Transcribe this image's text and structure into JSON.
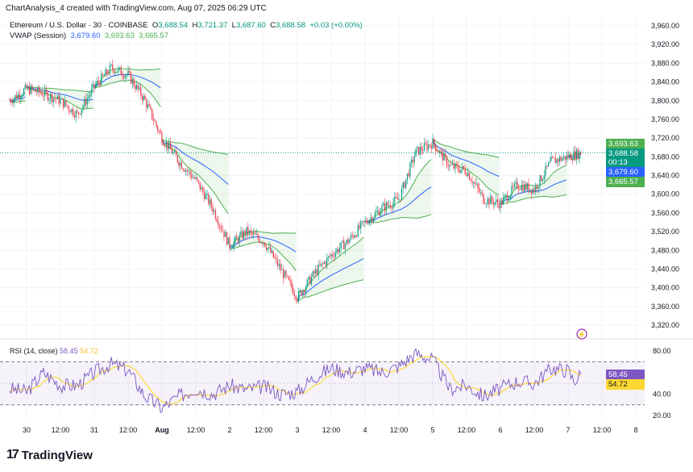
{
  "header": "ChartAnalysis_4 created with TradingView.com, Aug 07, 2025 06:29 UTC",
  "legend": {
    "symbol": "Ethereum / U.S. Dollar · 30 · COINBASE",
    "o_label": "O",
    "o": "3,688.54",
    "h_label": "H",
    "h": "3,721.37",
    "l_label": "L",
    "l": "3,687.60",
    "c_label": "C",
    "c": "3,688.58",
    "change": "+0.03 (+0.00%)",
    "vwap_label": "VWAP (Session)",
    "vwap": "3,679.60",
    "vwap_upper": "3,693.63",
    "vwap_lower": "3,665.57"
  },
  "price_tags": {
    "upper": "3,693.63",
    "last": "3,688.58",
    "countdown": "00:13",
    "vwap": "3,679.60",
    "lower": "3,665.57"
  },
  "rsi_legend": {
    "label": "RSI (14, close)",
    "rsi": "58.45",
    "ma": "54.72"
  },
  "rsi_tags": {
    "rsi": "58.45",
    "ma": "54.72"
  },
  "brand": "TradingView",
  "colors": {
    "up": "#089981",
    "down": "#f23645",
    "vwap": "#2962ff",
    "band": "#4caf50",
    "rsi": "#7e57c2",
    "rsi_ma": "#fdd835"
  },
  "chart_data": [
    {
      "type": "candlestick",
      "title": "Ethereum / U.S. Dollar · 30 · COINBASE",
      "y_ticks": [
        3320,
        3360,
        3400,
        3440,
        3480,
        3520,
        3560,
        3600,
        3640,
        3680,
        3720,
        3760,
        3800,
        3840,
        3880,
        3920,
        3960
      ],
      "y_tick_labels": [
        "3,320.00",
        "3,360.00",
        "3,400.00",
        "3,440.00",
        "3,480.00",
        "3,520.00",
        "3,560.00",
        "3,600.00",
        "3,640.00",
        "3,680.00",
        "3,720.00",
        "3,760.00",
        "3,800.00",
        "3,840.00",
        "3,880.00",
        "3,920.00",
        "3,960.00"
      ],
      "ylim": [
        3300,
        3980
      ],
      "x_tick_labels": [
        "30",
        "12:00",
        "31",
        "12:00",
        "Aug",
        "12:00",
        "2",
        "12:00",
        "3",
        "12:00",
        "4",
        "12:00",
        "5",
        "12:00",
        "6",
        "12:00",
        "7",
        "12:00",
        "8"
      ],
      "close_approx": [
        [
          "2025-07-29T18:00",
          3800
        ],
        [
          "2025-07-30T00:00",
          3825
        ],
        [
          "2025-07-30T06:00",
          3815
        ],
        [
          "2025-07-30T12:00",
          3800
        ],
        [
          "2025-07-30T18:00",
          3770
        ],
        [
          "2025-07-31T00:00",
          3830
        ],
        [
          "2025-07-31T06:00",
          3870
        ],
        [
          "2025-07-31T12:00",
          3855
        ],
        [
          "2025-07-31T18:00",
          3800
        ],
        [
          "2025-08-01T00:00",
          3720
        ],
        [
          "2025-08-01T06:00",
          3670
        ],
        [
          "2025-08-01T12:00",
          3630
        ],
        [
          "2025-08-01T18:00",
          3570
        ],
        [
          "2025-08-02T00:00",
          3490
        ],
        [
          "2025-08-02T06:00",
          3520
        ],
        [
          "2025-08-02T12:00",
          3500
        ],
        [
          "2025-08-02T18:00",
          3440
        ],
        [
          "2025-08-03T00:00",
          3380
        ],
        [
          "2025-08-03T06:00",
          3430
        ],
        [
          "2025-08-03T12:00",
          3470
        ],
        [
          "2025-08-03T18:00",
          3500
        ],
        [
          "2025-08-04T00:00",
          3540
        ],
        [
          "2025-08-04T06:00",
          3570
        ],
        [
          "2025-08-04T12:00",
          3590
        ],
        [
          "2025-08-04T18:00",
          3690
        ],
        [
          "2025-08-05T00:00",
          3710
        ],
        [
          "2025-08-05T06:00",
          3660
        ],
        [
          "2025-08-05T12:00",
          3650
        ],
        [
          "2025-08-05T18:00",
          3590
        ],
        [
          "2025-08-06T00:00",
          3580
        ],
        [
          "2025-08-06T06:00",
          3620
        ],
        [
          "2025-08-06T12:00",
          3610
        ],
        [
          "2025-08-06T18:00",
          3670
        ],
        [
          "2025-08-07T00:00",
          3680
        ],
        [
          "2025-08-07T04:30",
          3688.58
        ]
      ]
    },
    {
      "type": "line",
      "title": "RSI (14, close)",
      "y_ticks": [
        20,
        40,
        80
      ],
      "y_tick_labels": [
        "20.00",
        "40.00",
        "80.00"
      ],
      "ylim": [
        14,
        86
      ],
      "bands": [
        30,
        70
      ],
      "rsi_approx": [
        [
          "2025-07-29T18:00",
          45
        ],
        [
          "2025-07-30T00:00",
          42
        ],
        [
          "2025-07-30T06:00",
          60
        ],
        [
          "2025-07-30T12:00",
          48
        ],
        [
          "2025-07-30T18:00",
          48
        ],
        [
          "2025-07-31T00:00",
          60
        ],
        [
          "2025-07-31T06:00",
          68
        ],
        [
          "2025-07-31T12:00",
          62
        ],
        [
          "2025-07-31T18:00",
          38
        ],
        [
          "2025-08-01T00:00",
          27
        ],
        [
          "2025-08-01T06:00",
          38
        ],
        [
          "2025-08-01T12:00",
          45
        ],
        [
          "2025-08-01T18:00",
          40
        ],
        [
          "2025-08-02T00:00",
          48
        ],
        [
          "2025-08-02T06:00",
          44
        ],
        [
          "2025-08-02T12:00",
          47
        ],
        [
          "2025-08-02T18:00",
          40
        ],
        [
          "2025-08-03T00:00",
          42
        ],
        [
          "2025-08-03T06:00",
          56
        ],
        [
          "2025-08-03T12:00",
          64
        ],
        [
          "2025-08-03T18:00",
          60
        ],
        [
          "2025-08-04T00:00",
          64
        ],
        [
          "2025-08-04T06:00",
          60
        ],
        [
          "2025-08-04T12:00",
          66
        ],
        [
          "2025-08-04T18:00",
          78
        ],
        [
          "2025-08-05T00:00",
          72
        ],
        [
          "2025-08-05T06:00",
          45
        ],
        [
          "2025-08-05T12:00",
          48
        ],
        [
          "2025-08-05T18:00",
          38
        ],
        [
          "2025-08-06T00:00",
          45
        ],
        [
          "2025-08-06T06:00",
          52
        ],
        [
          "2025-08-06T12:00",
          50
        ],
        [
          "2025-08-06T18:00",
          64
        ],
        [
          "2025-08-07T00:00",
          62
        ],
        [
          "2025-08-07T02:00",
          52
        ],
        [
          "2025-08-07T04:30",
          58.45
        ]
      ]
    }
  ]
}
